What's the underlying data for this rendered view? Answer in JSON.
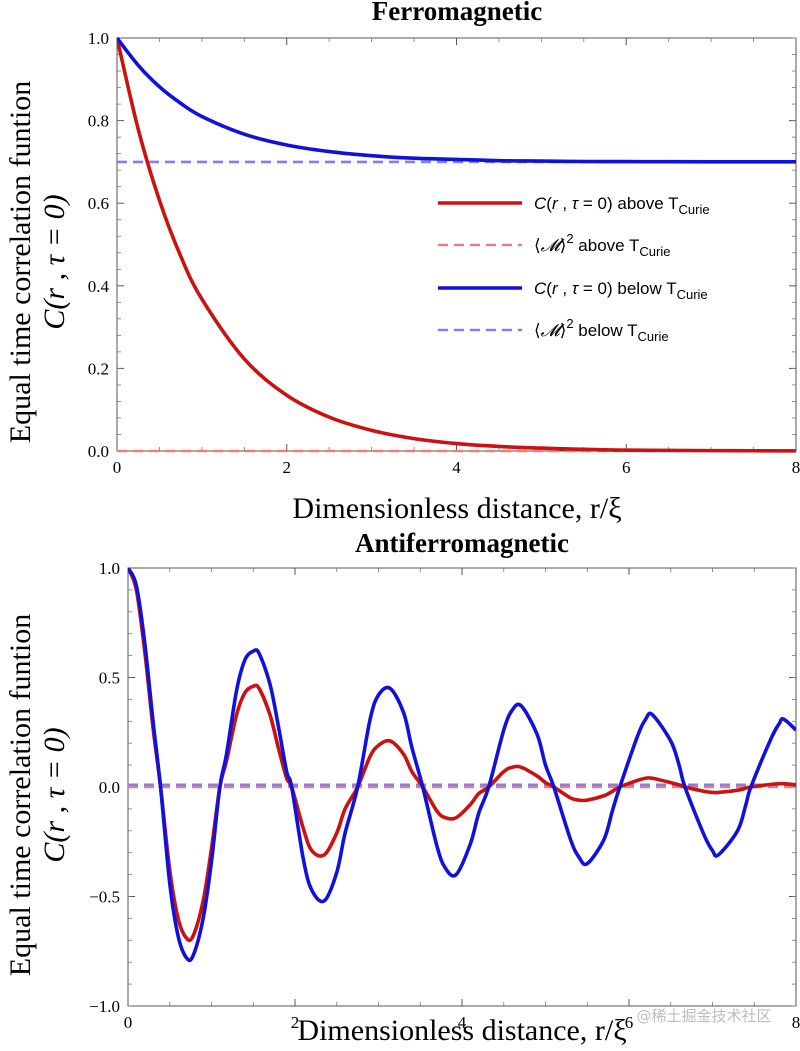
{
  "colors": {
    "above_curve": "#cc1111",
    "above_dashed": "#e88080",
    "below_curve": "#1111dd",
    "below_dashed": "#8080ee"
  },
  "watermark": "@稀土掘金技术社区",
  "legend": [
    {
      "pre": "C(",
      "r": "r",
      "mid": " , ",
      "tau": "τ",
      "post": " = 0) above T",
      "sub": "Curie",
      "style": "above-solid"
    },
    {
      "pre": "⟨",
      "m": "𝓜",
      "post2": "⟩",
      "sup": "2",
      "post": " above T",
      "sub": "Curie",
      "style": "above-dashed"
    },
    {
      "pre": "C(",
      "r": "r",
      "mid": " , ",
      "tau": "τ",
      "post": " = 0) below T",
      "sub": "Curie",
      "style": "below-solid"
    },
    {
      "pre": "⟨",
      "m": "𝓜",
      "post2": "⟩",
      "sup": "2",
      "post": " below T",
      "sub": "Curie",
      "style": "below-dashed"
    }
  ],
  "chart_data": [
    {
      "type": "line",
      "title": "Ferromagnetic",
      "xlabel": "Dimensionless distance, r/ξ",
      "ylabel_line1": "Equal time correlation funtion",
      "ylabel_line2": "C(r , τ = 0)",
      "xlim": [
        0,
        8
      ],
      "ylim": [
        0,
        1.0
      ],
      "xticks": [
        0,
        2,
        4,
        6,
        8
      ],
      "yticks": [
        0.0,
        0.2,
        0.4,
        0.6,
        0.8,
        1.0
      ],
      "ytick_labels": [
        "0.0",
        "0.2",
        "0.4",
        "0.6",
        "0.8",
        "1.0"
      ],
      "xtick_labels": [
        "0",
        "2",
        "4",
        "6",
        "8"
      ],
      "series": [
        {
          "name": "C(r, τ=0) above T_Curie",
          "style": "above-solid",
          "x": [
            0,
            0.25,
            0.5,
            0.75,
            1,
            1.5,
            2,
            2.5,
            3,
            3.5,
            4,
            4.5,
            5,
            5.5,
            6,
            6.5,
            7,
            7.5,
            8
          ],
          "values": [
            1.0,
            0.779,
            0.607,
            0.472,
            0.368,
            0.223,
            0.135,
            0.082,
            0.05,
            0.03,
            0.018,
            0.011,
            0.007,
            0.004,
            0.002,
            0.0015,
            0.0009,
            0.0006,
            0.0003
          ]
        },
        {
          "name": "⟨M⟩² above T_Curie",
          "style": "above-dashed",
          "x": [
            0,
            8
          ],
          "values": [
            0.0,
            0.0
          ]
        },
        {
          "name": "C(r, τ=0) below T_Curie",
          "style": "below-solid",
          "x": [
            0,
            0.25,
            0.5,
            0.75,
            1,
            1.5,
            2,
            2.5,
            3,
            3.5,
            4,
            4.5,
            5,
            5.5,
            6,
            6.5,
            7,
            7.5,
            8
          ],
          "values": [
            1.0,
            0.934,
            0.882,
            0.842,
            0.81,
            0.767,
            0.741,
            0.725,
            0.715,
            0.709,
            0.706,
            0.703,
            0.702,
            0.701,
            0.7007,
            0.7005,
            0.7003,
            0.7002,
            0.7001
          ]
        },
        {
          "name": "⟨M⟩² below T_Curie",
          "style": "below-dashed",
          "x": [
            0,
            8
          ],
          "values": [
            0.7,
            0.7
          ]
        }
      ]
    },
    {
      "type": "line",
      "title": "Antiferromagnetic",
      "xlabel": "Dimensionless distance, r/ξ",
      "ylabel_line1": "Equal time correlation funtion",
      "ylabel_line2": "C(r , τ = 0)",
      "xlim": [
        0,
        8
      ],
      "ylim": [
        -1.0,
        1.0
      ],
      "xticks": [
        0,
        2,
        4,
        6,
        8
      ],
      "yticks": [
        -1.0,
        -0.5,
        0.0,
        0.5,
        1.0
      ],
      "ytick_labels": [
        "−1.0",
        "−0.5",
        "0.0",
        "0.5",
        "1.0"
      ],
      "xtick_labels": [
        "0",
        "2",
        "4",
        "6",
        "8"
      ],
      "series": [
        {
          "name": "C(r, τ=0) above T_Curie",
          "style": "above-solid",
          "x": [
            0,
            0.1,
            0.2,
            0.3,
            0.39,
            0.5,
            0.6,
            0.7,
            0.78,
            0.9,
            1.0,
            1.1,
            1.18,
            1.3,
            1.4,
            1.5,
            1.57,
            1.7,
            1.8,
            1.9,
            1.96,
            2.1,
            2.2,
            2.35,
            2.5,
            2.6,
            2.75,
            2.9,
            3.0,
            3.14,
            3.3,
            3.4,
            3.53,
            3.7,
            3.8,
            3.93,
            4.1,
            4.2,
            4.32,
            4.5,
            4.6,
            4.71,
            4.9,
            5.0,
            5.1,
            5.3,
            5.4,
            5.5,
            5.7,
            5.8,
            5.89,
            6.1,
            6.2,
            6.28,
            6.5,
            6.6,
            6.67,
            6.9,
            7.0,
            7.07,
            7.3,
            7.4,
            7.46,
            7.7,
            7.8,
            7.85,
            8.0
          ],
          "values": [
            1.0,
            0.9,
            0.62,
            0.27,
            0.0,
            -0.38,
            -0.6,
            -0.69,
            -0.68,
            -0.52,
            -0.28,
            0.0,
            0.12,
            0.33,
            0.43,
            0.46,
            0.45,
            0.33,
            0.18,
            0.04,
            0.0,
            -0.19,
            -0.29,
            -0.31,
            -0.21,
            -0.1,
            0.0,
            0.14,
            0.19,
            0.21,
            0.15,
            0.07,
            0.0,
            -0.11,
            -0.14,
            -0.14,
            -0.08,
            -0.03,
            0.0,
            0.07,
            0.09,
            0.09,
            0.05,
            0.02,
            0.0,
            -0.05,
            -0.06,
            -0.06,
            -0.04,
            -0.02,
            0.0,
            0.03,
            0.04,
            0.04,
            0.02,
            0.01,
            0.0,
            -0.02,
            -0.025,
            -0.025,
            -0.015,
            -0.005,
            0.0,
            0.012,
            0.015,
            0.015,
            0.01
          ]
        },
        {
          "name": "⟨M⟩² above T_Curie",
          "style": "above-dashed",
          "x": [
            0,
            8
          ],
          "values": [
            0.0,
            0.0
          ]
        },
        {
          "name": "C(r, τ=0) below T_Curie",
          "style": "below-solid",
          "x": [
            0,
            0.1,
            0.2,
            0.3,
            0.39,
            0.5,
            0.6,
            0.7,
            0.78,
            0.9,
            1.0,
            1.1,
            1.18,
            1.3,
            1.4,
            1.5,
            1.57,
            1.7,
            1.8,
            1.9,
            1.96,
            2.1,
            2.2,
            2.35,
            2.5,
            2.6,
            2.75,
            2.9,
            3.0,
            3.14,
            3.3,
            3.4,
            3.53,
            3.7,
            3.8,
            3.93,
            4.1,
            4.2,
            4.32,
            4.5,
            4.6,
            4.71,
            4.9,
            5.0,
            5.1,
            5.3,
            5.4,
            5.5,
            5.7,
            5.8,
            5.89,
            6.1,
            6.2,
            6.28,
            6.5,
            6.6,
            6.67,
            6.9,
            7.0,
            7.07,
            7.3,
            7.4,
            7.46,
            7.7,
            7.8,
            7.85,
            8.0
          ],
          "values": [
            1.0,
            0.92,
            0.66,
            0.3,
            0.0,
            -0.44,
            -0.68,
            -0.78,
            -0.77,
            -0.6,
            -0.34,
            0.0,
            0.15,
            0.44,
            0.58,
            0.62,
            0.61,
            0.47,
            0.28,
            0.07,
            0.0,
            -0.33,
            -0.47,
            -0.52,
            -0.39,
            -0.21,
            0.0,
            0.31,
            0.42,
            0.45,
            0.34,
            0.18,
            0.0,
            -0.27,
            -0.37,
            -0.4,
            -0.26,
            -0.12,
            0.0,
            0.26,
            0.35,
            0.37,
            0.24,
            0.1,
            0.0,
            -0.24,
            -0.32,
            -0.35,
            -0.24,
            -0.11,
            0.0,
            0.23,
            0.31,
            0.33,
            0.21,
            0.1,
            0.0,
            -0.22,
            -0.29,
            -0.31,
            -0.2,
            -0.08,
            0.0,
            0.22,
            0.29,
            0.31,
            0.26
          ]
        },
        {
          "name": "⟨M⟩² below T_Curie",
          "style": "below-dashed",
          "x": [
            0,
            8
          ],
          "values": [
            0.01,
            0.01
          ]
        }
      ]
    }
  ]
}
